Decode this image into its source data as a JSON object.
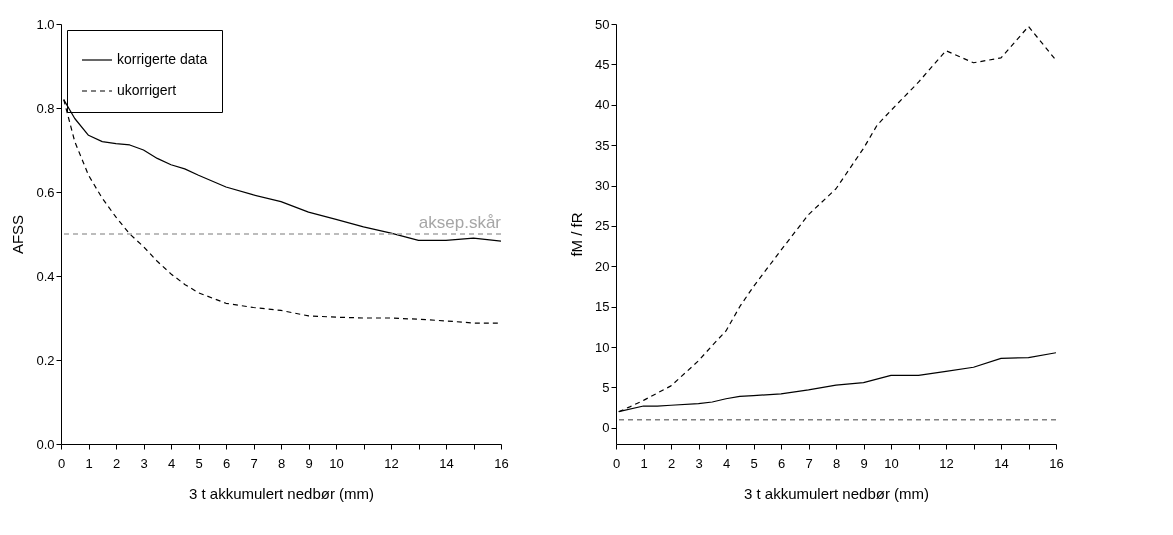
{
  "chart_data": [
    {
      "type": "line",
      "xlabel": "3 t akkumulert nedbør (mm)",
      "ylabel": "AFSS",
      "series": [
        {
          "name": "korrigerte data",
          "color": "#000000",
          "line_style": "solid",
          "x": [
            0.1,
            0.5,
            1,
            1.5,
            2,
            2.5,
            3,
            3.5,
            4,
            4.5,
            5,
            6,
            7,
            8,
            9,
            10,
            11,
            12,
            13,
            14,
            15,
            16
          ],
          "values": [
            0.82,
            0.775,
            0.735,
            0.72,
            0.715,
            0.712,
            0.7,
            0.68,
            0.665,
            0.655,
            0.64,
            0.612,
            0.593,
            0.577,
            0.552,
            0.535,
            0.517,
            0.502,
            0.485,
            0.485,
            0.49,
            0.483
          ]
        },
        {
          "name": "ukorrigert",
          "color": "#000000",
          "line_style": "dashed",
          "x": [
            0.1,
            0.5,
            1,
            1.5,
            2,
            2.5,
            3,
            3.5,
            4,
            4.5,
            5,
            6,
            7,
            8,
            9,
            10,
            11,
            12,
            13,
            14,
            15,
            16
          ],
          "values": [
            0.82,
            0.72,
            0.64,
            0.585,
            0.54,
            0.5,
            0.47,
            0.435,
            0.405,
            0.38,
            0.36,
            0.335,
            0.325,
            0.318,
            0.305,
            0.302,
            0.3,
            0.3,
            0.297,
            0.293,
            0.288,
            0.288
          ]
        }
      ],
      "xlim": [
        0,
        16
      ],
      "xticks": [
        0,
        1,
        2,
        3,
        4,
        5,
        6,
        7,
        8,
        9,
        10,
        {
          "value": 11,
          "label": null
        },
        12,
        {
          "value": 13,
          "label": null
        },
        14,
        {
          "value": 15,
          "label": null
        },
        16
      ],
      "ylim": [
        0,
        1
      ],
      "yticks": [
        {
          "value": 0,
          "label": "0.0"
        },
        0.2,
        0.4,
        0.6,
        0.8,
        {
          "value": 1,
          "label": "1.0"
        }
      ],
      "ref_lines": [
        {
          "axis": "y",
          "value": 0.5,
          "label": "aksep.skår",
          "color": "#a6a6a6",
          "line_style": "dashed"
        }
      ],
      "legend": "top left",
      "grid": false
    },
    {
      "type": "line",
      "xlabel": "3 t akkumulert nedbør (mm)",
      "ylabel": "fM / fR",
      "series": [
        {
          "name": "korrigerte data",
          "color": "#000000",
          "line_style": "solid",
          "x": [
            0.1,
            1,
            1.5,
            2,
            3,
            3.5,
            4,
            4.5,
            5,
            6,
            7,
            8,
            9,
            10,
            11,
            12,
            13,
            14,
            15,
            16
          ],
          "values": [
            2.0,
            2.7,
            2.7,
            2.8,
            3.0,
            3.2,
            3.6,
            3.9,
            4.0,
            4.2,
            4.7,
            5.3,
            5.6,
            6.5,
            6.5,
            7.0,
            7.5,
            8.6,
            8.7,
            9.3
          ]
        },
        {
          "name": "ukorrigert",
          "color": "#000000",
          "line_style": "dashed",
          "x": [
            0.1,
            0.5,
            1,
            2,
            3,
            3.5,
            4,
            4.5,
            5,
            6,
            7,
            8,
            9,
            9.5,
            10,
            11,
            12,
            13,
            14,
            15,
            16
          ],
          "values": [
            2.0,
            2.6,
            3.4,
            5.2,
            8.3,
            10.2,
            12,
            15,
            17.5,
            22,
            26.4,
            29.6,
            34.6,
            37.5,
            39.3,
            42.8,
            46.7,
            45.2,
            45.8,
            49.7,
            45.5
          ]
        }
      ],
      "xlim": [
        0,
        16
      ],
      "xticks": [
        0,
        1,
        2,
        3,
        4,
        5,
        6,
        7,
        8,
        9,
        10,
        {
          "value": 11,
          "label": null
        },
        12,
        {
          "value": 13,
          "label": null
        },
        14,
        {
          "value": 15,
          "label": null
        },
        16
      ],
      "ylim": [
        -2,
        50
      ],
      "yticks": [
        0,
        5,
        10,
        15,
        20,
        25,
        30,
        35,
        40,
        45,
        50
      ],
      "ref_lines": [
        {
          "axis": "y",
          "value": 1,
          "color": "#808080",
          "line_style": "dashed"
        }
      ],
      "legend": "top left",
      "grid": false
    }
  ]
}
